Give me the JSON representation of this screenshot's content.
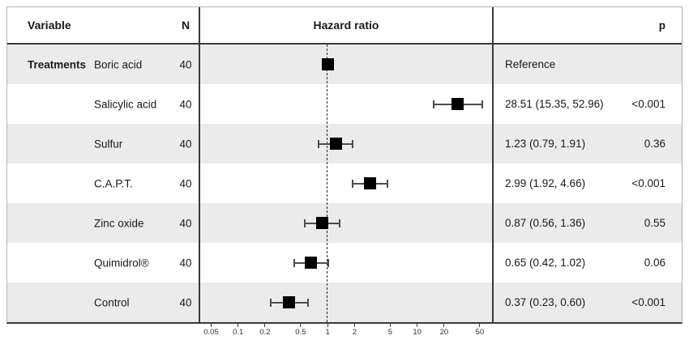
{
  "figure": {
    "header": {
      "variable": "Variable",
      "n": "N",
      "hazard_ratio": "Hazard ratio",
      "p": "p"
    },
    "group_label": "Treatments"
  },
  "chart_data": {
    "type": "forest",
    "title": "Hazard ratio",
    "xscale": "log",
    "xlim": [
      0.037,
      70
    ],
    "reference_line": 1,
    "xticks": [
      "0.05",
      "0.1",
      "0.2",
      "0.5",
      "1",
      "2",
      "5",
      "10",
      "20",
      "50"
    ],
    "group": "Treatments",
    "rows": [
      {
        "label": "Boric acid",
        "n": "40",
        "hr": 1.0,
        "lo": null,
        "hi": null,
        "estimate": "Reference",
        "p": ""
      },
      {
        "label": "Salicylic acid",
        "n": "40",
        "hr": 28.51,
        "lo": 15.35,
        "hi": 52.96,
        "estimate": "28.51 (15.35, 52.96)",
        "p": "<0.001"
      },
      {
        "label": "Sulfur",
        "n": "40",
        "hr": 1.23,
        "lo": 0.79,
        "hi": 1.91,
        "estimate": "1.23 (0.79, 1.91)",
        "p": "0.36"
      },
      {
        "label": "C.A.P.T.",
        "n": "40",
        "hr": 2.99,
        "lo": 1.92,
        "hi": 4.66,
        "estimate": "2.99 (1.92, 4.66)",
        "p": "<0.001"
      },
      {
        "label": "Zinc oxide",
        "n": "40",
        "hr": 0.87,
        "lo": 0.56,
        "hi": 1.36,
        "estimate": "0.87 (0.56, 1.36)",
        "p": "0.55"
      },
      {
        "label": "Quimidrol®",
        "n": "40",
        "hr": 0.65,
        "lo": 0.42,
        "hi": 1.02,
        "estimate": "0.65 (0.42, 1.02)",
        "p": "0.06"
      },
      {
        "label": "Control",
        "n": "40",
        "hr": 0.37,
        "lo": 0.23,
        "hi": 0.6,
        "estimate": "0.37 (0.23, 0.60)",
        "p": "<0.001"
      }
    ]
  },
  "colors": {
    "row_alt_bg": "#ebebeb",
    "frame_border": "#b3b3b3",
    "strong_line": "#3a3a3a",
    "marker": "#000000",
    "ci_line": "#4d4d4d",
    "text": "#1a1a1a"
  }
}
